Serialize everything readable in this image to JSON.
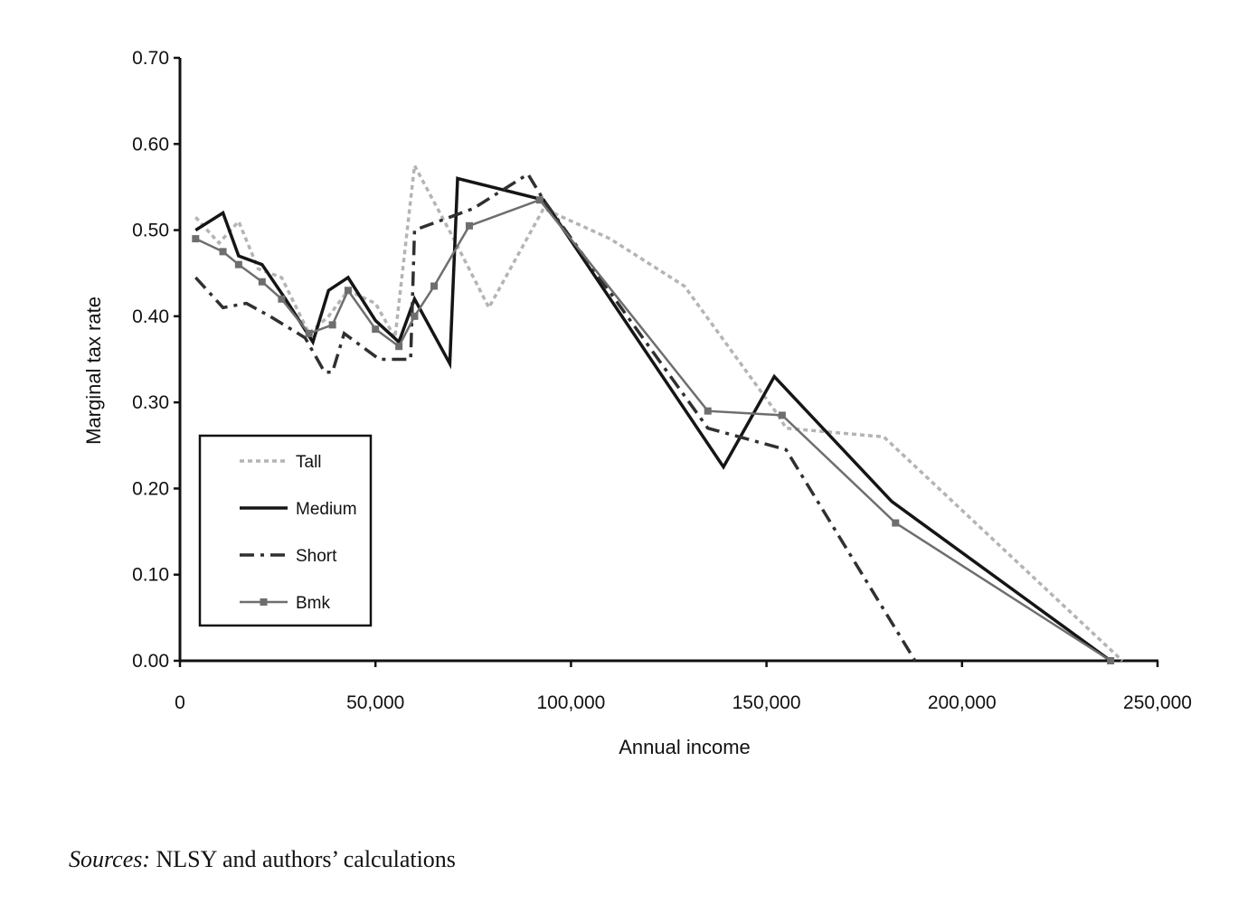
{
  "chart_data": {
    "type": "line",
    "title": "",
    "xlabel": "Annual income",
    "ylabel": "Marginal tax rate",
    "xlim": [
      0,
      250000
    ],
    "ylim": [
      0,
      0.7
    ],
    "x_ticks": [
      "0",
      "50,000",
      "100,000",
      "150,000",
      "200,000",
      "250,000"
    ],
    "y_ticks": [
      "0.00",
      "0.10",
      "0.20",
      "0.30",
      "0.40",
      "0.50",
      "0.60",
      "0.70"
    ],
    "grid": false,
    "legend_position": "lower-left",
    "series": [
      {
        "name": "Tall",
        "style": "dotted",
        "color": "#b4b4b4",
        "points": [
          [
            4000,
            0.515
          ],
          [
            10000,
            0.485
          ],
          [
            15000,
            0.51
          ],
          [
            20000,
            0.455
          ],
          [
            26000,
            0.445
          ],
          [
            33000,
            0.38
          ],
          [
            38000,
            0.4
          ],
          [
            43000,
            0.43
          ],
          [
            50000,
            0.415
          ],
          [
            55000,
            0.375
          ],
          [
            60000,
            0.575
          ],
          [
            70000,
            0.49
          ],
          [
            79000,
            0.41
          ],
          [
            93000,
            0.525
          ],
          [
            110000,
            0.49
          ],
          [
            129000,
            0.435
          ],
          [
            153000,
            0.285
          ],
          [
            155000,
            0.27
          ],
          [
            180000,
            0.26
          ],
          [
            241000,
            0.0
          ]
        ]
      },
      {
        "name": "Medium",
        "style": "solid",
        "color": "#151515",
        "points": [
          [
            4000,
            0.5
          ],
          [
            11000,
            0.52
          ],
          [
            15000,
            0.47
          ],
          [
            21000,
            0.46
          ],
          [
            27000,
            0.42
          ],
          [
            34000,
            0.37
          ],
          [
            38000,
            0.43
          ],
          [
            43000,
            0.445
          ],
          [
            50000,
            0.395
          ],
          [
            56000,
            0.37
          ],
          [
            60000,
            0.42
          ],
          [
            69000,
            0.345
          ],
          [
            71000,
            0.56
          ],
          [
            93000,
            0.535
          ],
          [
            139000,
            0.225
          ],
          [
            152000,
            0.33
          ],
          [
            182000,
            0.185
          ],
          [
            238000,
            0.0
          ]
        ]
      },
      {
        "name": "Short",
        "style": "dash-dot",
        "color": "#303030",
        "points": [
          [
            4000,
            0.445
          ],
          [
            11000,
            0.41
          ],
          [
            17000,
            0.415
          ],
          [
            23000,
            0.4
          ],
          [
            32000,
            0.375
          ],
          [
            37000,
            0.335
          ],
          [
            39000,
            0.335
          ],
          [
            42000,
            0.38
          ],
          [
            51000,
            0.35
          ],
          [
            59000,
            0.35
          ],
          [
            60000,
            0.5
          ],
          [
            75000,
            0.525
          ],
          [
            89000,
            0.565
          ],
          [
            93000,
            0.535
          ],
          [
            135000,
            0.27
          ],
          [
            155000,
            0.245
          ],
          [
            188000,
            0.0
          ]
        ]
      },
      {
        "name": "Bmk",
        "style": "solid-square",
        "color": "#6e6e6e",
        "points": [
          [
            4000,
            0.49
          ],
          [
            11000,
            0.475
          ],
          [
            15000,
            0.46
          ],
          [
            21000,
            0.44
          ],
          [
            26000,
            0.42
          ],
          [
            33000,
            0.38
          ],
          [
            39000,
            0.39
          ],
          [
            43000,
            0.43
          ],
          [
            50000,
            0.385
          ],
          [
            56000,
            0.365
          ],
          [
            60000,
            0.4
          ],
          [
            65000,
            0.435
          ],
          [
            74000,
            0.505
          ],
          [
            92000,
            0.535
          ],
          [
            135000,
            0.29
          ],
          [
            154000,
            0.285
          ],
          [
            183000,
            0.16
          ],
          [
            238000,
            0.0
          ]
        ]
      }
    ]
  },
  "footer": {
    "source_label": "Sources:",
    "source_text": " NLSY and authors’ calculations"
  }
}
